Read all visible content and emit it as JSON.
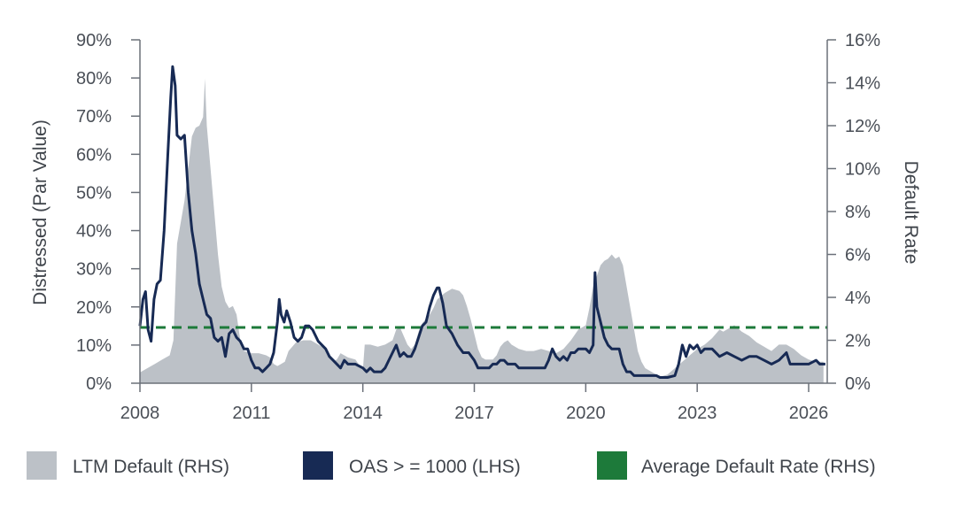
{
  "chart_data": {
    "type": "area+line",
    "ylabel_left": "Distressed (Par Value)",
    "ylabel_right": "Default Rate",
    "x_ticks": [
      "2008",
      "2011",
      "2014",
      "2017",
      "2020",
      "2023",
      "2026"
    ],
    "xlim": [
      2008,
      2026.5
    ],
    "y_left_ticks": [
      "0%",
      "10%",
      "20%",
      "30%",
      "40%",
      "50%",
      "60%",
      "70%",
      "80%",
      "90%"
    ],
    "ylim_left": [
      0,
      90
    ],
    "y_right_ticks": [
      "0%",
      "2%",
      "4%",
      "6%",
      "8%",
      "10%",
      "12%",
      "14%",
      "16%"
    ],
    "ylim_right": [
      0,
      16
    ],
    "legend": [
      {
        "label": "LTM Default (RHS)",
        "color": "#bcc1c7",
        "kind": "area"
      },
      {
        "label": "OAS > = 1000 (LHS)",
        "color": "#172a54",
        "kind": "line"
      },
      {
        "label": "Average Default Rate (RHS)",
        "color": "#1d7a3a",
        "kind": "dashed"
      }
    ],
    "series": [
      {
        "name": "LTM Default (RHS)",
        "axis": "right",
        "color": "#bcc1c7",
        "points": [
          [
            2008.0,
            0.5
          ],
          [
            2008.2,
            0.7
          ],
          [
            2008.4,
            0.9
          ],
          [
            2008.6,
            1.1
          ],
          [
            2008.8,
            1.3
          ],
          [
            2008.9,
            2.0
          ],
          [
            2009.0,
            6.5
          ],
          [
            2009.1,
            7.5
          ],
          [
            2009.2,
            8.5
          ],
          [
            2009.3,
            10.0
          ],
          [
            2009.4,
            11.5
          ],
          [
            2009.5,
            11.9
          ],
          [
            2009.6,
            12.0
          ],
          [
            2009.7,
            12.4
          ],
          [
            2009.75,
            14.2
          ],
          [
            2009.8,
            12.0
          ],
          [
            2009.9,
            10.0
          ],
          [
            2010.0,
            8.0
          ],
          [
            2010.1,
            6.0
          ],
          [
            2010.2,
            4.5
          ],
          [
            2010.3,
            3.8
          ],
          [
            2010.4,
            3.5
          ],
          [
            2010.5,
            3.6
          ],
          [
            2010.6,
            3.2
          ],
          [
            2010.7,
            2.0
          ],
          [
            2010.8,
            1.5
          ],
          [
            2011.0,
            1.4
          ],
          [
            2011.2,
            1.4
          ],
          [
            2011.4,
            1.3
          ],
          [
            2011.5,
            1.2
          ],
          [
            2011.6,
            0.9
          ],
          [
            2011.7,
            0.8
          ],
          [
            2011.8,
            0.9
          ],
          [
            2011.9,
            1.0
          ],
          [
            2012.0,
            1.5
          ],
          [
            2012.1,
            1.7
          ],
          [
            2012.2,
            1.9
          ],
          [
            2012.4,
            2.0
          ],
          [
            2012.6,
            2.0
          ],
          [
            2012.8,
            1.8
          ],
          [
            2013.0,
            1.6
          ],
          [
            2013.1,
            1.2
          ],
          [
            2013.2,
            1.0
          ],
          [
            2013.3,
            1.1
          ],
          [
            2013.4,
            1.4
          ],
          [
            2013.5,
            1.3
          ],
          [
            2013.6,
            1.2
          ],
          [
            2013.8,
            1.1
          ],
          [
            2014.0,
            0.6
          ],
          [
            2014.05,
            1.8
          ],
          [
            2014.2,
            1.8
          ],
          [
            2014.4,
            1.7
          ],
          [
            2014.6,
            1.8
          ],
          [
            2014.8,
            2.0
          ],
          [
            2014.9,
            2.5
          ],
          [
            2015.0,
            2.6
          ],
          [
            2015.1,
            2.2
          ],
          [
            2015.2,
            1.8
          ],
          [
            2015.3,
            1.6
          ],
          [
            2015.4,
            1.8
          ],
          [
            2015.5,
            2.4
          ],
          [
            2015.6,
            2.8
          ],
          [
            2015.7,
            3.0
          ],
          [
            2015.8,
            3.2
          ],
          [
            2015.9,
            3.5
          ],
          [
            2016.0,
            3.9
          ],
          [
            2016.2,
            4.2
          ],
          [
            2016.4,
            4.4
          ],
          [
            2016.6,
            4.3
          ],
          [
            2016.7,
            4.1
          ],
          [
            2016.8,
            3.6
          ],
          [
            2016.9,
            3.0
          ],
          [
            2017.0,
            2.3
          ],
          [
            2017.1,
            1.6
          ],
          [
            2017.2,
            1.2
          ],
          [
            2017.3,
            1.1
          ],
          [
            2017.5,
            1.1
          ],
          [
            2017.6,
            1.3
          ],
          [
            2017.7,
            1.7
          ],
          [
            2017.8,
            1.9
          ],
          [
            2017.9,
            2.0
          ],
          [
            2018.0,
            1.8
          ],
          [
            2018.2,
            1.6
          ],
          [
            2018.4,
            1.5
          ],
          [
            2018.6,
            1.5
          ],
          [
            2018.8,
            1.6
          ],
          [
            2019.0,
            1.5
          ],
          [
            2019.2,
            1.4
          ],
          [
            2019.4,
            1.6
          ],
          [
            2019.6,
            2.0
          ],
          [
            2019.8,
            2.5
          ],
          [
            2020.0,
            2.7
          ],
          [
            2020.1,
            3.5
          ],
          [
            2020.2,
            4.5
          ],
          [
            2020.3,
            5.0
          ],
          [
            2020.4,
            5.5
          ],
          [
            2020.5,
            5.7
          ],
          [
            2020.6,
            5.8
          ],
          [
            2020.7,
            6.0
          ],
          [
            2020.8,
            5.8
          ],
          [
            2020.9,
            5.9
          ],
          [
            2021.0,
            5.5
          ],
          [
            2021.1,
            4.5
          ],
          [
            2021.2,
            3.5
          ],
          [
            2021.3,
            2.5
          ],
          [
            2021.4,
            1.5
          ],
          [
            2021.5,
            1.0
          ],
          [
            2021.6,
            0.7
          ],
          [
            2021.8,
            0.5
          ],
          [
            2022.0,
            0.3
          ],
          [
            2022.2,
            0.4
          ],
          [
            2022.4,
            0.7
          ],
          [
            2022.6,
            1.0
          ],
          [
            2022.8,
            1.3
          ],
          [
            2023.0,
            1.6
          ],
          [
            2023.2,
            1.8
          ],
          [
            2023.4,
            2.1
          ],
          [
            2023.5,
            2.3
          ],
          [
            2023.6,
            2.5
          ],
          [
            2023.7,
            2.4
          ],
          [
            2023.9,
            2.6
          ],
          [
            2024.0,
            2.7
          ],
          [
            2024.2,
            2.4
          ],
          [
            2024.4,
            2.2
          ],
          [
            2024.6,
            1.9
          ],
          [
            2024.8,
            1.7
          ],
          [
            2024.9,
            1.6
          ],
          [
            2025.0,
            1.5
          ],
          [
            2025.2,
            1.8
          ],
          [
            2025.4,
            1.8
          ],
          [
            2025.6,
            1.6
          ],
          [
            2025.8,
            1.3
          ],
          [
            2026.0,
            1.1
          ],
          [
            2026.2,
            1.0
          ],
          [
            2026.4,
            1.0
          ]
        ]
      },
      {
        "name": "OAS > = 1000 (LHS)",
        "axis": "left",
        "color": "#172a54",
        "points": [
          [
            2008.0,
            15
          ],
          [
            2008.08,
            22
          ],
          [
            2008.15,
            24
          ],
          [
            2008.22,
            14
          ],
          [
            2008.3,
            11
          ],
          [
            2008.38,
            22
          ],
          [
            2008.46,
            26
          ],
          [
            2008.55,
            27
          ],
          [
            2008.65,
            40
          ],
          [
            2008.75,
            60
          ],
          [
            2008.83,
            75
          ],
          [
            2008.88,
            83
          ],
          [
            2008.95,
            78
          ],
          [
            2009.0,
            65
          ],
          [
            2009.1,
            64
          ],
          [
            2009.2,
            65
          ],
          [
            2009.3,
            50
          ],
          [
            2009.4,
            40
          ],
          [
            2009.5,
            34
          ],
          [
            2009.6,
            26
          ],
          [
            2009.7,
            22
          ],
          [
            2009.8,
            18
          ],
          [
            2009.9,
            17
          ],
          [
            2010.0,
            12
          ],
          [
            2010.1,
            11
          ],
          [
            2010.2,
            12
          ],
          [
            2010.3,
            7
          ],
          [
            2010.4,
            13
          ],
          [
            2010.5,
            14
          ],
          [
            2010.6,
            12
          ],
          [
            2010.7,
            11
          ],
          [
            2010.8,
            9
          ],
          [
            2010.9,
            9
          ],
          [
            2011.0,
            6
          ],
          [
            2011.1,
            4
          ],
          [
            2011.2,
            4
          ],
          [
            2011.3,
            3
          ],
          [
            2011.4,
            4
          ],
          [
            2011.5,
            5
          ],
          [
            2011.6,
            8
          ],
          [
            2011.7,
            16
          ],
          [
            2011.75,
            22
          ],
          [
            2011.8,
            18
          ],
          [
            2011.88,
            16
          ],
          [
            2011.95,
            19
          ],
          [
            2012.05,
            16
          ],
          [
            2012.15,
            12
          ],
          [
            2012.25,
            11
          ],
          [
            2012.35,
            12
          ],
          [
            2012.45,
            15
          ],
          [
            2012.55,
            15
          ],
          [
            2012.65,
            14
          ],
          [
            2012.8,
            11
          ],
          [
            2013.0,
            9
          ],
          [
            2013.1,
            7
          ],
          [
            2013.2,
            6
          ],
          [
            2013.3,
            5
          ],
          [
            2013.4,
            4
          ],
          [
            2013.5,
            6
          ],
          [
            2013.6,
            5
          ],
          [
            2013.7,
            5
          ],
          [
            2013.8,
            5
          ],
          [
            2014.0,
            4
          ],
          [
            2014.1,
            3
          ],
          [
            2014.2,
            4
          ],
          [
            2014.3,
            3
          ],
          [
            2014.4,
            3
          ],
          [
            2014.5,
            3
          ],
          [
            2014.6,
            4
          ],
          [
            2014.7,
            6
          ],
          [
            2014.8,
            8
          ],
          [
            2014.9,
            10
          ],
          [
            2015.0,
            7
          ],
          [
            2015.1,
            8
          ],
          [
            2015.2,
            7
          ],
          [
            2015.3,
            7
          ],
          [
            2015.4,
            9
          ],
          [
            2015.5,
            12
          ],
          [
            2015.6,
            15
          ],
          [
            2015.7,
            16
          ],
          [
            2015.8,
            20
          ],
          [
            2015.9,
            23
          ],
          [
            2016.0,
            25
          ],
          [
            2016.05,
            25
          ],
          [
            2016.15,
            21
          ],
          [
            2016.25,
            15
          ],
          [
            2016.4,
            13
          ],
          [
            2016.55,
            10
          ],
          [
            2016.7,
            8
          ],
          [
            2016.85,
            8
          ],
          [
            2017.0,
            6
          ],
          [
            2017.1,
            4
          ],
          [
            2017.2,
            4
          ],
          [
            2017.3,
            4
          ],
          [
            2017.4,
            4
          ],
          [
            2017.5,
            5
          ],
          [
            2017.6,
            5
          ],
          [
            2017.7,
            6
          ],
          [
            2017.8,
            6
          ],
          [
            2017.9,
            5
          ],
          [
            2018.0,
            5
          ],
          [
            2018.1,
            5
          ],
          [
            2018.2,
            4
          ],
          [
            2018.3,
            4
          ],
          [
            2018.4,
            4
          ],
          [
            2018.5,
            4
          ],
          [
            2018.6,
            4
          ],
          [
            2018.7,
            4
          ],
          [
            2018.8,
            4
          ],
          [
            2018.9,
            4
          ],
          [
            2019.0,
            6
          ],
          [
            2019.1,
            9
          ],
          [
            2019.2,
            7
          ],
          [
            2019.3,
            6
          ],
          [
            2019.4,
            7
          ],
          [
            2019.5,
            6
          ],
          [
            2019.6,
            8
          ],
          [
            2019.7,
            8
          ],
          [
            2019.8,
            9
          ],
          [
            2019.9,
            9
          ],
          [
            2020.0,
            9
          ],
          [
            2020.1,
            8
          ],
          [
            2020.2,
            10
          ],
          [
            2020.25,
            29
          ],
          [
            2020.3,
            20
          ],
          [
            2020.4,
            16
          ],
          [
            2020.5,
            12
          ],
          [
            2020.6,
            10
          ],
          [
            2020.7,
            9
          ],
          [
            2020.8,
            9
          ],
          [
            2020.9,
            9
          ],
          [
            2021.0,
            5
          ],
          [
            2021.1,
            3
          ],
          [
            2021.2,
            3
          ],
          [
            2021.3,
            2
          ],
          [
            2021.5,
            2
          ],
          [
            2021.7,
            2
          ],
          [
            2021.9,
            2
          ],
          [
            2022.0,
            1.5
          ],
          [
            2022.2,
            1.5
          ],
          [
            2022.4,
            2
          ],
          [
            2022.5,
            5
          ],
          [
            2022.6,
            10
          ],
          [
            2022.7,
            7
          ],
          [
            2022.8,
            10
          ],
          [
            2022.9,
            9
          ],
          [
            2023.0,
            10
          ],
          [
            2023.1,
            8
          ],
          [
            2023.2,
            9
          ],
          [
            2023.4,
            9
          ],
          [
            2023.6,
            7
          ],
          [
            2023.8,
            8
          ],
          [
            2024.0,
            7
          ],
          [
            2024.2,
            6
          ],
          [
            2024.4,
            7
          ],
          [
            2024.6,
            7
          ],
          [
            2024.8,
            6
          ],
          [
            2025.0,
            5
          ],
          [
            2025.2,
            6
          ],
          [
            2025.4,
            8
          ],
          [
            2025.5,
            5
          ],
          [
            2025.6,
            5
          ],
          [
            2025.8,
            5
          ],
          [
            2026.0,
            5
          ],
          [
            2026.2,
            6
          ],
          [
            2026.3,
            5
          ],
          [
            2026.45,
            5
          ]
        ]
      },
      {
        "name": "Average Default Rate (RHS)",
        "axis": "right",
        "color": "#1d7a3a",
        "value": 2.6
      }
    ]
  }
}
